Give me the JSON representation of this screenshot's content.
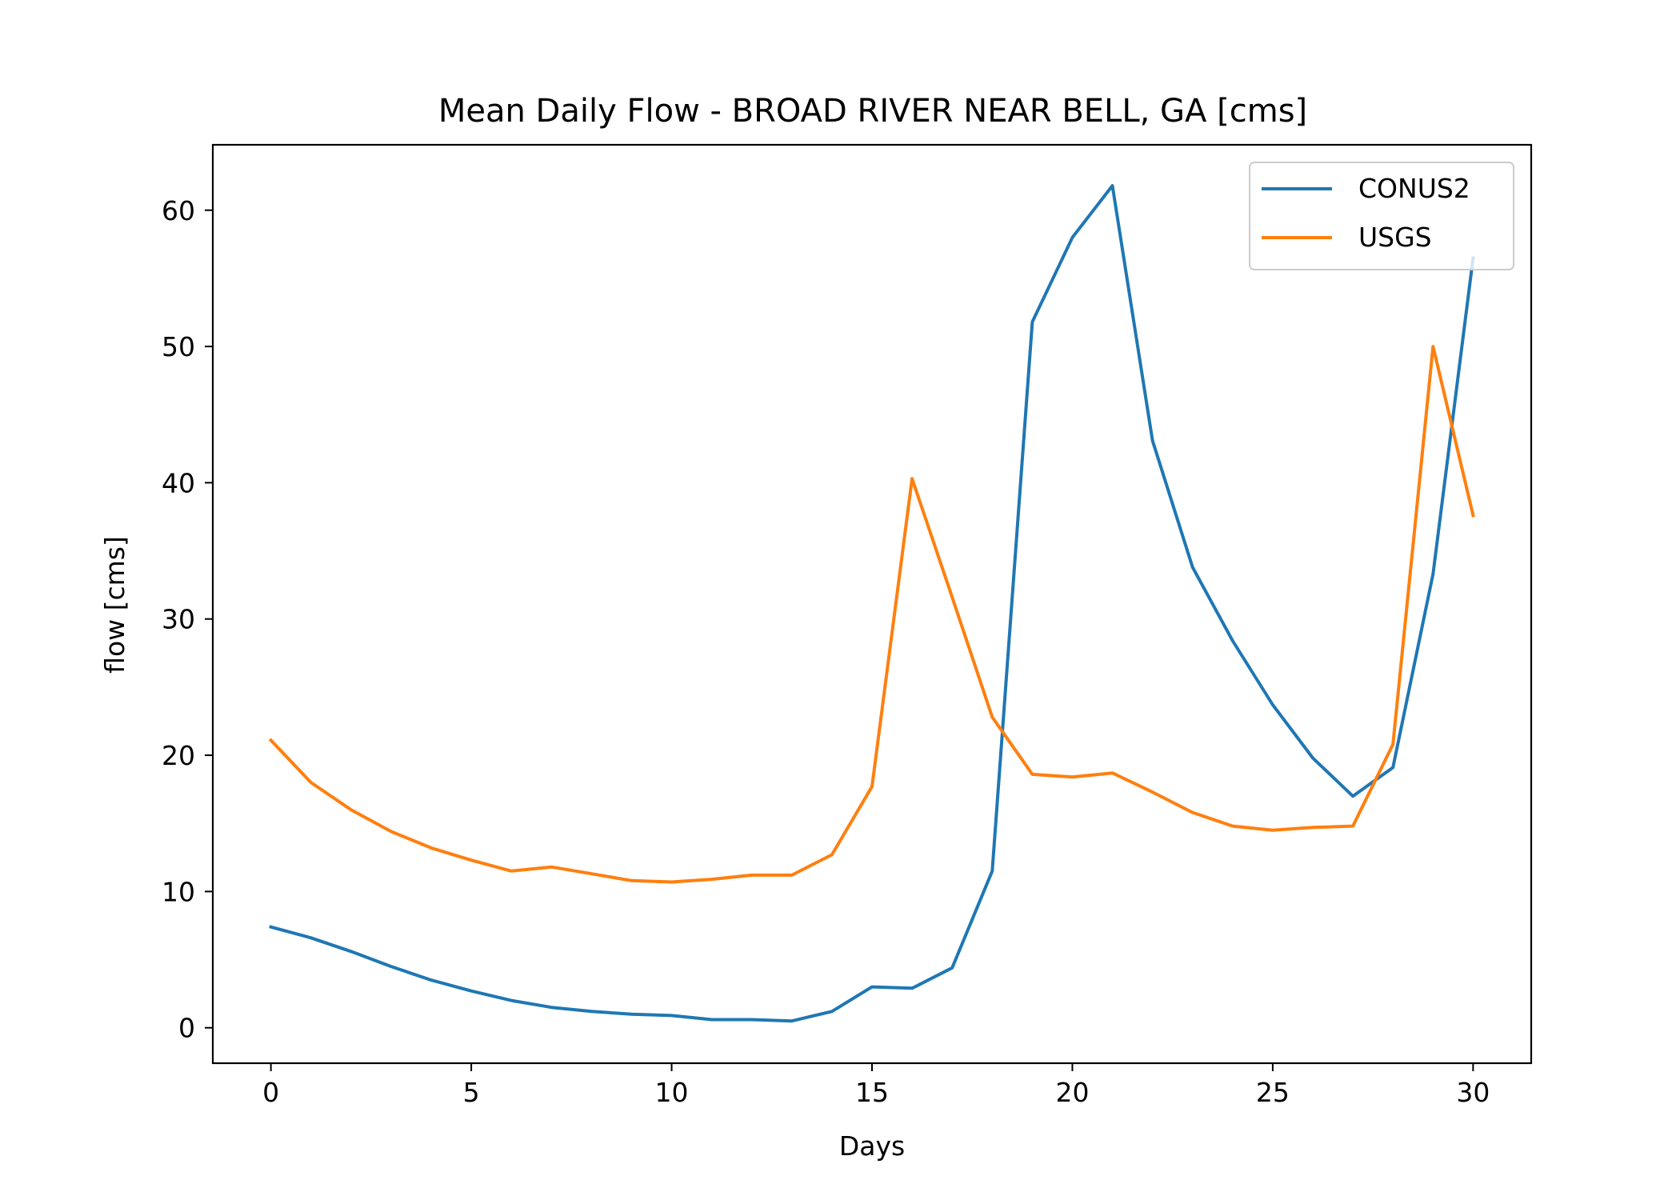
{
  "chart_data": {
    "type": "line",
    "title": "Mean Daily Flow - BROAD RIVER NEAR BELL, GA [cms]",
    "xlabel": "Days",
    "ylabel": "flow [cms]",
    "xlim": [
      -1.45,
      31.45
    ],
    "ylim": [
      -2.6,
      64.8
    ],
    "xticks": [
      0,
      5,
      10,
      15,
      20,
      25,
      30
    ],
    "yticks": [
      0,
      10,
      20,
      30,
      40,
      50,
      60
    ],
    "grid": false,
    "legend_position": "top-right",
    "x": [
      0,
      1,
      2,
      3,
      4,
      5,
      6,
      7,
      8,
      9,
      10,
      11,
      12,
      13,
      14,
      15,
      16,
      17,
      18,
      19,
      20,
      21,
      22,
      23,
      24,
      25,
      26,
      27,
      28,
      29,
      30
    ],
    "series": [
      {
        "name": "CONUS2",
        "color": "#1f77b4",
        "values": [
          7.4,
          6.6,
          5.6,
          4.5,
          3.5,
          2.7,
          2.0,
          1.5,
          1.2,
          1.0,
          0.9,
          0.6,
          0.6,
          0.5,
          1.2,
          3.0,
          2.9,
          4.4,
          11.5,
          51.8,
          58.0,
          61.8,
          43.1,
          33.8,
          28.4,
          23.7,
          19.8,
          17.0,
          19.1,
          33.3,
          56.5
        ]
      },
      {
        "name": "USGS",
        "color": "#ff7f0e",
        "values": [
          21.1,
          18.0,
          16.0,
          14.4,
          13.2,
          12.3,
          11.5,
          11.8,
          11.3,
          10.8,
          10.7,
          10.9,
          11.2,
          11.2,
          12.7,
          17.7,
          40.3,
          31.6,
          22.8,
          18.6,
          18.4,
          18.7,
          17.3,
          15.8,
          14.8,
          14.5,
          14.7,
          14.8,
          20.8,
          50.0,
          37.6
        ]
      }
    ]
  }
}
